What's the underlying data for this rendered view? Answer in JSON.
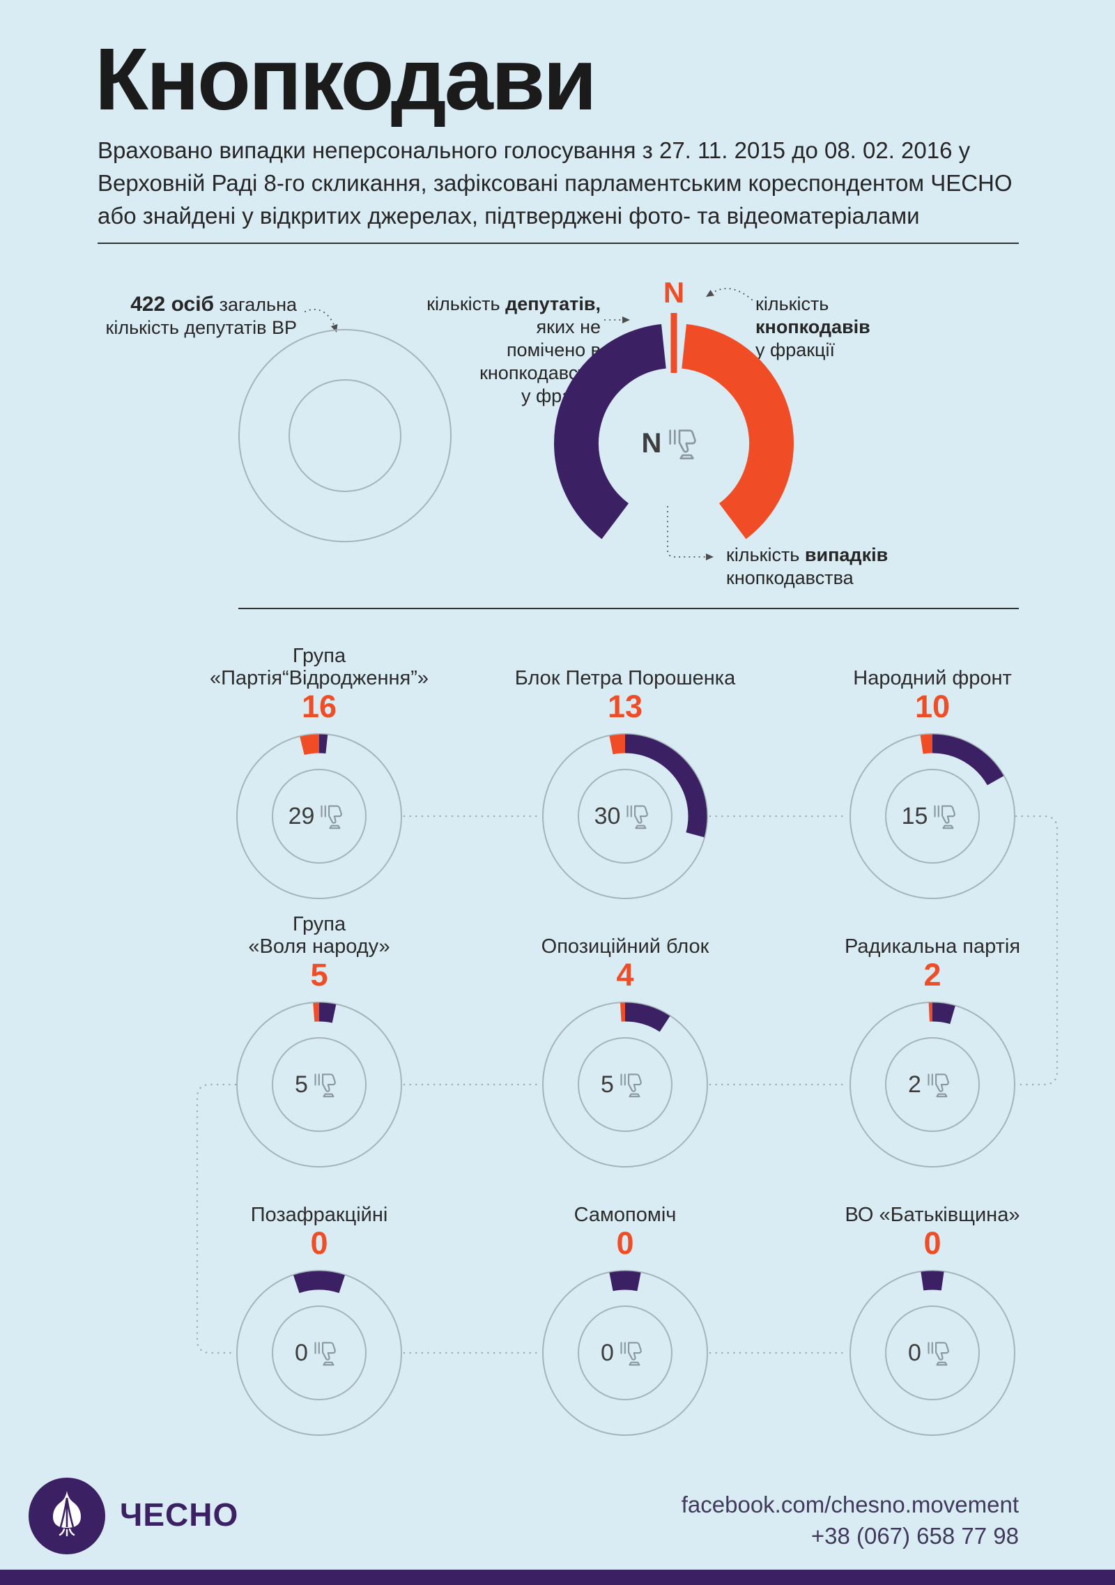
{
  "page": {
    "bg": "#d9ebf3",
    "accent_orange": "#f04c25",
    "accent_purple": "#3b2064",
    "outline_gray": "#a6b3ba"
  },
  "header": {
    "title": "Кнопкодави",
    "subtitle_lines": [
      "Враховано випадки неперсонального голосування з 27. 11. 2015 до 08. 02. 2016 у",
      "Верховній Раді 8-го скликання, зафіксовані парламентським кореспондентом ЧЕСНО",
      "або знайдені у відкритих джерелах, підтверджені фото- та відеоматеріалами"
    ]
  },
  "legend": {
    "total_bold": "422 осіб",
    "total_rest_line1": "загальна",
    "total_rest_line2": "кількість депутатів ВР",
    "clean_l1a": "кількість",
    "clean_l1b": "депутатів,",
    "clean_l1c": "яких не",
    "clean_l2": "помічено в кнопкодавстві",
    "clean_l3": "у фракції",
    "pushers_l1": "кількість",
    "pushers_l2": "кнопкодавів",
    "pushers_l3": "у фракції",
    "marker_letter": "N",
    "center_letter": "N",
    "cases_l1a": "кількість",
    "cases_l1b": "випадків",
    "cases_l2": "кнопкодавства",
    "example_arcs": {
      "orange": [
        6,
        143
      ],
      "purple": [
        217,
        354
      ]
    }
  },
  "chart_data": {
    "type": "donut-grid",
    "total_deputies": 422,
    "legend_entries": [
      "кількість кнопкодавів у фракції (помаранчевий)",
      "кількість депутатів, яких не помічено в кнопкодавстві, у фракції (фіолетовий)",
      "кількість випадків кнопкодавства (число в центрі)"
    ],
    "factions": [
      {
        "name": "Група «Партія“Відродження”»",
        "name_lines": [
          "Група",
          "«Партія“Відродження”»"
        ],
        "pushers": 16,
        "cases": 29,
        "not_caught_est": 7
      },
      {
        "name": "Блок Петра Порошенка",
        "name_lines": [
          "Блок Петра Порошенка"
        ],
        "pushers": 13,
        "cases": 30,
        "not_caught_est": 123
      },
      {
        "name": "Народний фронт",
        "name_lines": [
          "Народний фронт"
        ],
        "pushers": 10,
        "cases": 15,
        "not_caught_est": 71
      },
      {
        "name": "Група «Воля народу»",
        "name_lines": [
          "Група",
          "«Воля народу»"
        ],
        "pushers": 5,
        "cases": 5,
        "not_caught_est": 14
      },
      {
        "name": "Опозиційний блок",
        "name_lines": [
          "Опозиційний блок"
        ],
        "pushers": 4,
        "cases": 5,
        "not_caught_est": 39
      },
      {
        "name": "Радикальна партія",
        "name_lines": [
          "Радикальна партія"
        ],
        "pushers": 2,
        "cases": 2,
        "not_caught_est": 19
      },
      {
        "name": "Позафракційні",
        "name_lines": [
          "Позафракційні"
        ],
        "pushers": 0,
        "cases": 0,
        "not_caught_est": 43
      },
      {
        "name": "Самопоміч",
        "name_lines": [
          "Самопоміч"
        ],
        "pushers": 0,
        "cases": 0,
        "not_caught_est": 26
      },
      {
        "name": "ВО «Батьківщина»",
        "name_lines": [
          "ВО «Батьківщина»"
        ],
        "pushers": 0,
        "cases": 0,
        "not_caught_est": 19
      }
    ]
  },
  "footer": {
    "brand": "ЧЕСНО",
    "facebook": "facebook.com/chesno.movement",
    "phone": "+38 (067) 658 77 98"
  }
}
